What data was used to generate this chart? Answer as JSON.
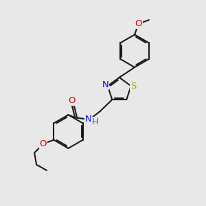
{
  "bg_color": "#e8e8e8",
  "bond_color": "#1a1a1a",
  "bond_width": 1.5,
  "atom_colors": {
    "N": "#0000ee",
    "O": "#dd0000",
    "S": "#aaaa00",
    "H_amide": "#008888"
  },
  "font_size": 8.5,
  "fig_size": [
    3.0,
    3.0
  ],
  "dpi": 100
}
